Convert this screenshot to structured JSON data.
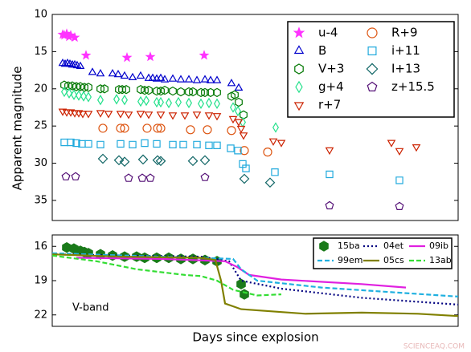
{
  "chart_data": [
    {
      "type": "scatter",
      "ylabel": "Apparent magnitude",
      "xlim": [
        0,
        505
      ],
      "ylim": [
        10,
        37.7
      ],
      "invert_y": true,
      "yticks": [
        10,
        15,
        20,
        25,
        30,
        35
      ],
      "legend": "upper right",
      "series": [
        {
          "name": "u-4",
          "color": "#ff33ff",
          "marker": "star",
          "filled": true,
          "x": [
            13,
            15,
            18,
            21,
            23,
            28,
            42,
            93,
            122,
            189
          ],
          "values": [
            12.7,
            12.8,
            12.6,
            13.0,
            12.8,
            13.1,
            15.5,
            15.8,
            15.7,
            15.5
          ]
        },
        {
          "name": "B",
          "color": "#0000cc",
          "marker": "triangle-up",
          "filled": false,
          "x": [
            13,
            16,
            19,
            22,
            25,
            28,
            31,
            35,
            50,
            60,
            75,
            82,
            90,
            100,
            110,
            120,
            125,
            130,
            135,
            140,
            150,
            160,
            170,
            180,
            190,
            197,
            205,
            223,
            232
          ],
          "values": [
            16.6,
            16.7,
            16.6,
            16.7,
            16.8,
            16.8,
            16.9,
            17.0,
            17.8,
            18.0,
            18.0,
            18.1,
            18.3,
            18.5,
            18.3,
            18.6,
            18.6,
            18.7,
            18.6,
            18.8,
            18.7,
            18.8,
            18.8,
            18.9,
            18.8,
            18.9,
            18.9,
            19.3,
            19.9
          ]
        },
        {
          "name": "V+3",
          "color": "#007700",
          "marker": "hexagon",
          "filled": false,
          "x": [
            15,
            20,
            25,
            30,
            35,
            40,
            45,
            60,
            65,
            83,
            87,
            92,
            110,
            115,
            120,
            130,
            135,
            140,
            150,
            160,
            170,
            175,
            185,
            190,
            197,
            205,
            223,
            227,
            232,
            238
          ],
          "values": [
            19.5,
            19.6,
            19.6,
            19.7,
            19.7,
            19.8,
            19.8,
            20.0,
            20.0,
            20.1,
            20.1,
            20.1,
            20.1,
            20.2,
            20.2,
            20.3,
            20.3,
            20.2,
            20.3,
            20.4,
            20.4,
            20.4,
            20.5,
            20.5,
            20.5,
            20.5,
            21.0,
            20.8,
            21.8,
            23.5
          ]
        },
        {
          "name": "g+4",
          "color": "#22e08a",
          "marker": "thin-diamond",
          "filled": false,
          "x": [
            15,
            21,
            27,
            33,
            39,
            45,
            60,
            80,
            90,
            110,
            117,
            130,
            135,
            145,
            157,
            170,
            185,
            195,
            205,
            225,
            231,
            237,
            278
          ],
          "values": [
            20.4,
            20.6,
            20.8,
            20.9,
            21.0,
            21.1,
            21.5,
            21.4,
            21.5,
            21.7,
            21.6,
            21.8,
            21.8,
            21.9,
            21.8,
            21.9,
            22.0,
            21.9,
            22.0,
            22.5,
            23.0,
            24.5,
            25.2
          ]
        },
        {
          "name": "r+7",
          "color": "#cc2200",
          "marker": "triangle-down",
          "filled": false,
          "x": [
            13,
            18,
            23,
            28,
            33,
            38,
            45,
            60,
            70,
            85,
            95,
            110,
            120,
            135,
            150,
            165,
            180,
            195,
            205,
            225,
            232,
            235,
            238,
            275,
            285,
            345,
            422,
            432,
            453
          ],
          "values": [
            23.0,
            23.1,
            23.1,
            23.2,
            23.2,
            23.3,
            23.3,
            23.2,
            23.3,
            23.3,
            23.4,
            23.3,
            23.4,
            23.4,
            23.5,
            23.5,
            23.4,
            23.5,
            23.6,
            24.0,
            24.4,
            25.3,
            26.2,
            27.0,
            27.2,
            28.2,
            27.2,
            28.3,
            27.8
          ]
        },
        {
          "name": "R+9",
          "color": "#dd5511",
          "marker": "circle",
          "filled": false,
          "x": [
            63,
            85,
            90,
            118,
            131,
            135,
            172,
            193,
            223,
            239,
            268
          ],
          "values": [
            25.3,
            25.3,
            25.3,
            25.3,
            25.3,
            25.3,
            25.5,
            25.5,
            25.6,
            28.3,
            28.5
          ]
        },
        {
          "name": "i+11",
          "color": "#22aadd",
          "marker": "square",
          "filled": false,
          "x": [
            15,
            23,
            30,
            37,
            45,
            60,
            85,
            100,
            115,
            130,
            150,
            163,
            180,
            195,
            205,
            222,
            231,
            237,
            241,
            277,
            345,
            432
          ],
          "values": [
            27.2,
            27.2,
            27.3,
            27.4,
            27.4,
            27.5,
            27.4,
            27.5,
            27.3,
            27.4,
            27.5,
            27.5,
            27.5,
            27.6,
            27.6,
            28.0,
            28.3,
            30.1,
            30.7,
            31.2,
            31.5,
            32.3
          ]
        },
        {
          "name": "I+13",
          "color": "#116666",
          "marker": "diamond",
          "filled": false,
          "x": [
            63,
            83,
            90,
            113,
            131,
            135,
            175,
            190,
            239,
            271
          ],
          "values": [
            29.4,
            29.6,
            29.8,
            29.5,
            29.6,
            29.7,
            29.7,
            29.6,
            32.1,
            32.6
          ]
        },
        {
          "name": "z+15.5",
          "color": "#551177",
          "marker": "pentagon",
          "filled": false,
          "x": [
            17,
            29,
            95,
            112,
            122,
            190,
            345,
            432
          ],
          "values": [
            31.8,
            31.8,
            32.0,
            32.0,
            32.0,
            31.9,
            35.7,
            35.8
          ]
        }
      ]
    },
    {
      "type": "line",
      "xlabel": "Days since explosion",
      "annotation": "V-band",
      "watermark": "SCIENCEAQ.COM",
      "xlim": [
        0,
        505
      ],
      "ylim": [
        15,
        23
      ],
      "invert_y": true,
      "yticks": [
        16,
        19,
        22
      ],
      "legend": "upper right",
      "series": [
        {
          "name": "15ba",
          "color": "#1a7a1a",
          "marker": "hexagon",
          "filled": true,
          "x": [
            18,
            27,
            35,
            40,
            45,
            60,
            75,
            90,
            105,
            115,
            130,
            145,
            160,
            175,
            190,
            205,
            235,
            239
          ],
          "values": [
            16.1,
            16.2,
            16.4,
            16.5,
            16.6,
            16.7,
            16.8,
            16.9,
            16.9,
            17.0,
            17.0,
            17.0,
            17.1,
            17.1,
            17.2,
            17.3,
            19.3,
            20.2
          ]
        },
        {
          "name": "04et",
          "color": "#000080",
          "linestyle": "dotted",
          "x": [
            0,
            85,
            185,
            220,
            235,
            285,
            385,
            505
          ],
          "values": [
            16.7,
            16.8,
            16.9,
            17.3,
            19.0,
            19.7,
            20.5,
            21.1
          ]
        },
        {
          "name": "09ib",
          "color": "#e020e0",
          "linestyle": "solid",
          "x": [
            30,
            135,
            215,
            230,
            245,
            285,
            385,
            440
          ],
          "values": [
            17.0,
            17.1,
            17.3,
            17.8,
            18.5,
            18.9,
            19.3,
            19.6
          ]
        },
        {
          "name": "99em",
          "color": "#1fb0e0",
          "linestyle": "dashed",
          "x": [
            0,
            135,
            225,
            235,
            255,
            335,
            505
          ],
          "values": [
            16.6,
            16.9,
            17.1,
            18.0,
            19.0,
            19.6,
            20.4
          ]
        },
        {
          "name": "05cs",
          "color": "#808000",
          "linestyle": "solid",
          "x": [
            0,
            85,
            185,
            203,
            210,
            215,
            235,
            315,
            385,
            455,
            505
          ],
          "values": [
            16.7,
            16.9,
            17.0,
            17.2,
            19.0,
            21.0,
            21.5,
            21.9,
            21.8,
            21.9,
            22.1
          ]
        },
        {
          "name": "13ab",
          "color": "#33dd33",
          "linestyle": "dashed",
          "x": [
            0,
            55,
            105,
            165,
            185,
            205,
            225,
            255,
            285
          ],
          "values": [
            16.8,
            17.3,
            18.0,
            18.5,
            18.6,
            19.0,
            19.8,
            20.3,
            20.2
          ]
        }
      ]
    }
  ]
}
